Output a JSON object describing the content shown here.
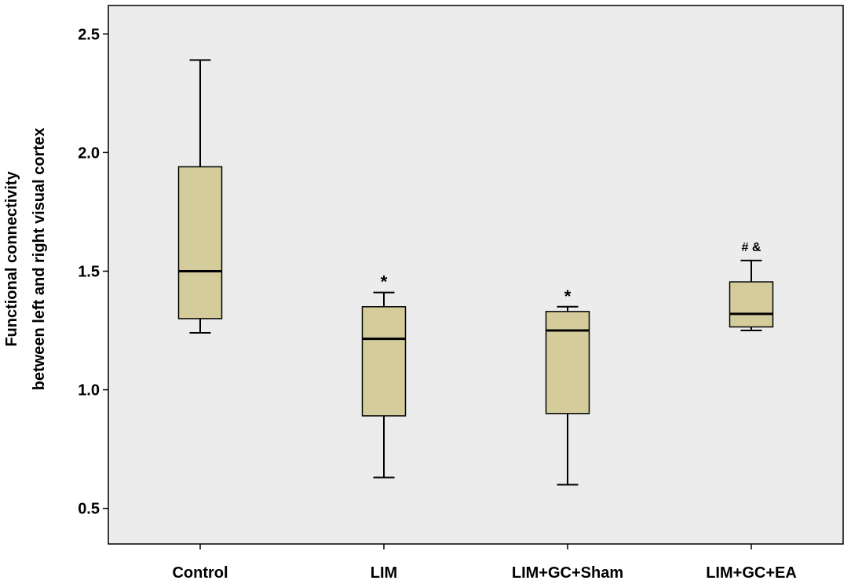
{
  "chart_data": {
    "type": "boxplot",
    "ylabel_line1": "Functional connectivity",
    "ylabel_line2": "between left and right visual cortex",
    "xlabel": "",
    "ylim": [
      0.35,
      2.62
    ],
    "yticks": [
      "0.5",
      "1.0",
      "1.5",
      "2.0",
      "2.5"
    ],
    "ytick_values": [
      0.5,
      1.0,
      1.5,
      2.0,
      2.5
    ],
    "grid": false,
    "categories": [
      "Control",
      "LIM",
      "LIM+GC+Sham",
      "LIM+GC+EA"
    ],
    "boxes": [
      {
        "category": "Control",
        "min": 1.24,
        "q1": 1.3,
        "median": 1.5,
        "q3": 1.94,
        "max": 2.39,
        "annotation": ""
      },
      {
        "category": "LIM",
        "min": 0.63,
        "q1": 0.89,
        "median": 1.215,
        "q3": 1.35,
        "max": 1.41,
        "annotation": "*"
      },
      {
        "category": "LIM+GC+Sham",
        "min": 0.6,
        "q1": 0.9,
        "median": 1.25,
        "q3": 1.33,
        "max": 1.35,
        "annotation": "*"
      },
      {
        "category": "LIM+GC+EA",
        "min": 1.25,
        "q1": 1.265,
        "median": 1.32,
        "q3": 1.455,
        "max": 1.545,
        "annotation": "# &"
      }
    ],
    "colors": {
      "plot_background": "#ececec",
      "box_fill": "#d5cc9b",
      "stroke": "#000000"
    }
  }
}
